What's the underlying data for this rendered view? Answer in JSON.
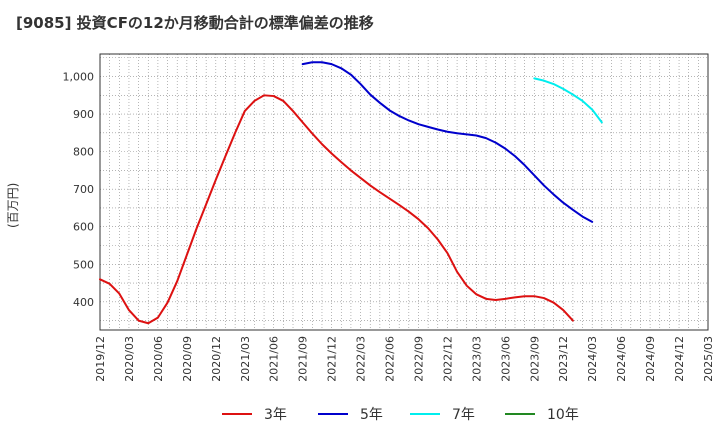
{
  "chart_data": {
    "type": "line",
    "title": "[9085]  投資CFの12か月移動合計の標準偏差の推移",
    "ylabel": "(百万円)",
    "xlabel": "",
    "ylim": [
      325,
      1060
    ],
    "y_ticks": [
      400,
      500,
      600,
      700,
      800,
      900,
      1000
    ],
    "y_tick_labels": [
      "400",
      "500",
      "600",
      "700",
      "800",
      "900",
      "1,000"
    ],
    "x_range": [
      "2019/12",
      "2025/03"
    ],
    "x_ticks": [
      "2019/12",
      "2020/03",
      "2020/06",
      "2020/09",
      "2020/12",
      "2021/03",
      "2021/06",
      "2021/09",
      "2021/12",
      "2022/03",
      "2022/06",
      "2022/09",
      "2022/12",
      "2023/03",
      "2023/06",
      "2023/09",
      "2023/12",
      "2024/03",
      "2024/06",
      "2024/09",
      "2024/12",
      "2025/03"
    ],
    "grid": true,
    "legend_position": "bottom",
    "series": [
      {
        "name": "3年",
        "color": "#dd1111",
        "points": [
          [
            "2019/12",
            460
          ],
          [
            "2020/01",
            448
          ],
          [
            "2020/02",
            422
          ],
          [
            "2020/03",
            378
          ],
          [
            "2020/04",
            350
          ],
          [
            "2020/05",
            343
          ],
          [
            "2020/06",
            358
          ],
          [
            "2020/07",
            398
          ],
          [
            "2020/08",
            455
          ],
          [
            "2020/09",
            525
          ],
          [
            "2020/10",
            595
          ],
          [
            "2020/11",
            660
          ],
          [
            "2020/12",
            725
          ],
          [
            "2021/01",
            788
          ],
          [
            "2021/02",
            850
          ],
          [
            "2021/03",
            908
          ],
          [
            "2021/04",
            935
          ],
          [
            "2021/05",
            950
          ],
          [
            "2021/06",
            948
          ],
          [
            "2021/07",
            935
          ],
          [
            "2021/08",
            908
          ],
          [
            "2021/09",
            878
          ],
          [
            "2021/10",
            848
          ],
          [
            "2021/11",
            820
          ],
          [
            "2021/12",
            795
          ],
          [
            "2022/01",
            772
          ],
          [
            "2022/02",
            750
          ],
          [
            "2022/03",
            730
          ],
          [
            "2022/04",
            710
          ],
          [
            "2022/05",
            692
          ],
          [
            "2022/06",
            675
          ],
          [
            "2022/07",
            658
          ],
          [
            "2022/08",
            640
          ],
          [
            "2022/09",
            620
          ],
          [
            "2022/10",
            596
          ],
          [
            "2022/11",
            566
          ],
          [
            "2022/12",
            530
          ],
          [
            "2023/01",
            480
          ],
          [
            "2023/02",
            443
          ],
          [
            "2023/03",
            420
          ],
          [
            "2023/04",
            408
          ],
          [
            "2023/05",
            405
          ],
          [
            "2023/06",
            408
          ],
          [
            "2023/07",
            412
          ],
          [
            "2023/08",
            415
          ],
          [
            "2023/09",
            415
          ],
          [
            "2023/10",
            410
          ],
          [
            "2023/11",
            398
          ],
          [
            "2023/12",
            378
          ],
          [
            "2024/01",
            350
          ]
        ]
      },
      {
        "name": "5年",
        "color": "#0000cc",
        "points": [
          [
            "2021/09",
            1033
          ],
          [
            "2021/10",
            1038
          ],
          [
            "2021/11",
            1038
          ],
          [
            "2021/12",
            1033
          ],
          [
            "2022/01",
            1022
          ],
          [
            "2022/02",
            1005
          ],
          [
            "2022/03",
            980
          ],
          [
            "2022/04",
            952
          ],
          [
            "2022/05",
            930
          ],
          [
            "2022/06",
            910
          ],
          [
            "2022/07",
            895
          ],
          [
            "2022/08",
            883
          ],
          [
            "2022/09",
            873
          ],
          [
            "2022/10",
            866
          ],
          [
            "2022/11",
            859
          ],
          [
            "2022/12",
            853
          ],
          [
            "2023/01",
            849
          ],
          [
            "2023/02",
            846
          ],
          [
            "2023/03",
            843
          ],
          [
            "2023/04",
            836
          ],
          [
            "2023/05",
            824
          ],
          [
            "2023/06",
            808
          ],
          [
            "2023/07",
            788
          ],
          [
            "2023/08",
            764
          ],
          [
            "2023/09",
            737
          ],
          [
            "2023/10",
            710
          ],
          [
            "2023/11",
            686
          ],
          [
            "2023/12",
            664
          ],
          [
            "2024/01",
            645
          ],
          [
            "2024/02",
            627
          ],
          [
            "2024/03",
            613
          ]
        ]
      },
      {
        "name": "7年",
        "color": "#00eeee",
        "points": [
          [
            "2023/09",
            995
          ],
          [
            "2023/10",
            989
          ],
          [
            "2023/11",
            980
          ],
          [
            "2023/12",
            967
          ],
          [
            "2024/01",
            952
          ],
          [
            "2024/02",
            935
          ],
          [
            "2024/03",
            912
          ],
          [
            "2024/04",
            878
          ]
        ]
      },
      {
        "name": "10年",
        "color": "#228822",
        "points": []
      }
    ]
  }
}
